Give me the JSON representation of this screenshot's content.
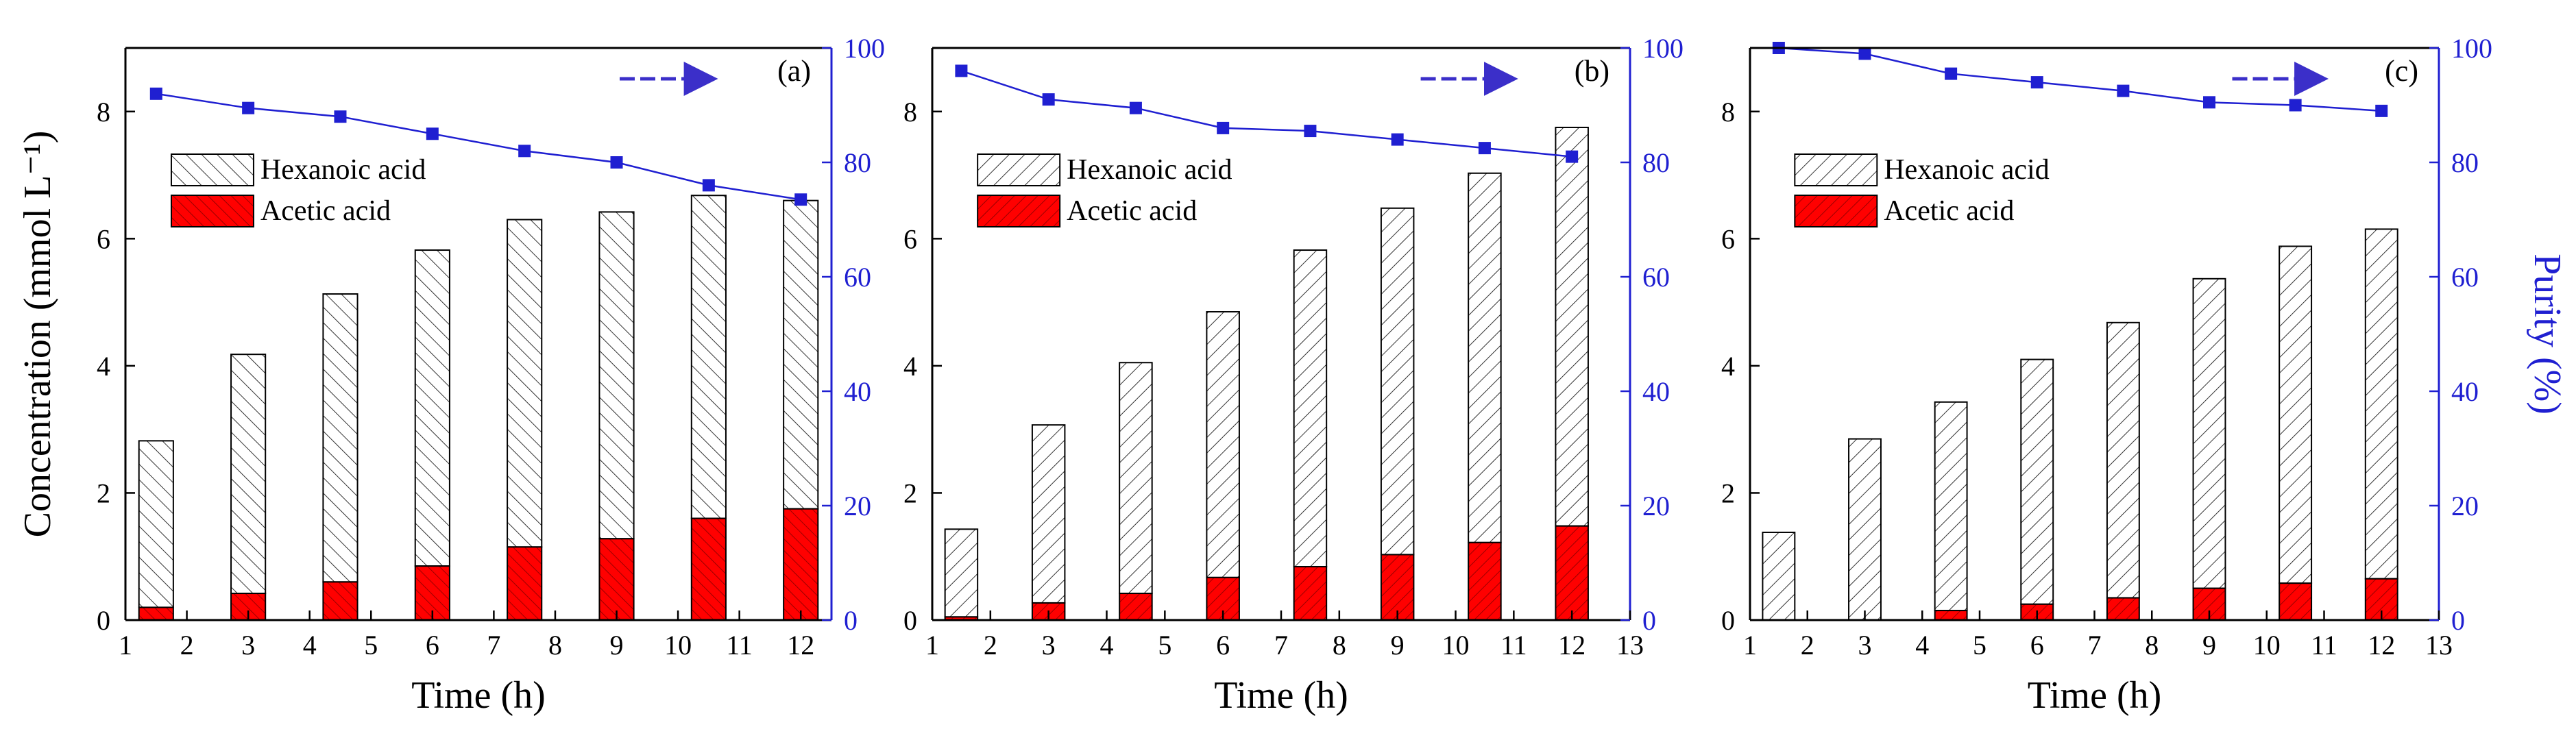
{
  "colors": {
    "acetic": "#ff0000",
    "acetic_hatch": "#8b0000",
    "hexanoic_fill": "#ffffff",
    "hatch": "#333333",
    "purity": "#1f1fd1",
    "arrow": "#3b2fc9",
    "axis": "#000000"
  },
  "chart_data": [
    {
      "type": "bar",
      "stacked": true,
      "panel_label": "(a)",
      "xlabel": "Time (h)",
      "ylabel": "Concentration (mmol L⁻¹)",
      "y2label": "",
      "xlim": [
        1,
        12.5
      ],
      "ylim": [
        0,
        9
      ],
      "y2lim": [
        0,
        100
      ],
      "xticks": [
        "1",
        "2",
        "3",
        "4",
        "5",
        "6",
        "7",
        "8",
        "9",
        "10",
        "11",
        "12"
      ],
      "yticks": [
        "0",
        "2",
        "4",
        "6",
        "8"
      ],
      "y2ticks": [
        "0",
        "20",
        "40",
        "60",
        "80",
        "100"
      ],
      "x": [
        1.5,
        3,
        4.5,
        6,
        7.5,
        9,
        10.5,
        12
      ],
      "series": [
        {
          "name": "Acetic acid",
          "values": [
            0.2,
            0.42,
            0.6,
            0.85,
            1.15,
            1.28,
            1.6,
            1.75
          ]
        },
        {
          "name": "Hexanoic acid",
          "values": [
            2.62,
            3.76,
            4.53,
            4.97,
            5.15,
            5.14,
            5.08,
            4.85
          ]
        },
        {
          "name": "Purity",
          "axis": "right",
          "values": [
            92,
            89.5,
            88,
            85,
            82,
            80,
            76,
            73.5
          ]
        }
      ],
      "legend": {
        "position": "upper-left",
        "entries": [
          "Hexanoic acid",
          "Acetic acid"
        ]
      },
      "arrow": "right",
      "grid": false
    },
    {
      "type": "bar",
      "stacked": true,
      "panel_label": "(b)",
      "xlabel": "Time (h)",
      "ylabel": "",
      "y2label": "",
      "xlim": [
        1,
        13
      ],
      "ylim": [
        0,
        9
      ],
      "y2lim": [
        0,
        100
      ],
      "xticks": [
        "1",
        "2",
        "3",
        "4",
        "5",
        "6",
        "7",
        "8",
        "9",
        "10",
        "11",
        "12",
        "13"
      ],
      "yticks": [
        "0",
        "2",
        "4",
        "6",
        "8"
      ],
      "y2ticks": [
        "0",
        "20",
        "40",
        "60",
        "80",
        "100"
      ],
      "x": [
        1.5,
        3,
        4.5,
        6,
        7.5,
        9,
        10.5,
        12
      ],
      "series": [
        {
          "name": "Acetic acid",
          "values": [
            0.05,
            0.27,
            0.42,
            0.67,
            0.84,
            1.03,
            1.22,
            1.48
          ]
        },
        {
          "name": "Hexanoic acid",
          "values": [
            1.38,
            2.8,
            3.63,
            4.18,
            4.98,
            5.45,
            5.81,
            6.27
          ]
        },
        {
          "name": "Purity",
          "axis": "right",
          "values": [
            96,
            91,
            89.5,
            86,
            85.5,
            84,
            82.5,
            81
          ]
        }
      ],
      "legend": {
        "position": "upper-left",
        "entries": [
          "Hexanoic acid",
          "Acetic acid"
        ]
      },
      "arrow": "right",
      "grid": false
    },
    {
      "type": "bar",
      "stacked": true,
      "panel_label": "(c)",
      "xlabel": "Time (h)",
      "ylabel": "",
      "y2label": "Purity (%)",
      "xlim": [
        1,
        13
      ],
      "ylim": [
        0,
        9
      ],
      "y2lim": [
        0,
        100
      ],
      "xticks": [
        "1",
        "2",
        "3",
        "4",
        "5",
        "6",
        "7",
        "8",
        "9",
        "10",
        "11",
        "12",
        "13"
      ],
      "yticks": [
        "0",
        "2",
        "4",
        "6",
        "8"
      ],
      "y2ticks": [
        "0",
        "20",
        "40",
        "60",
        "80",
        "100"
      ],
      "x": [
        1.5,
        3,
        4.5,
        6,
        7.5,
        9,
        10.5,
        12
      ],
      "series": [
        {
          "name": "Acetic acid",
          "values": [
            0.0,
            0.0,
            0.15,
            0.25,
            0.35,
            0.5,
            0.58,
            0.65
          ]
        },
        {
          "name": "Hexanoic acid",
          "values": [
            1.38,
            2.85,
            3.28,
            3.85,
            4.33,
            4.87,
            5.3,
            5.5
          ]
        },
        {
          "name": "Purity",
          "axis": "right",
          "values": [
            100,
            99,
            95.5,
            94,
            92.5,
            90.5,
            90,
            89
          ]
        }
      ],
      "legend": {
        "position": "upper-left",
        "entries": [
          "Hexanoic acid",
          "Acetic acid"
        ]
      },
      "arrow": "right",
      "grid": false
    }
  ]
}
